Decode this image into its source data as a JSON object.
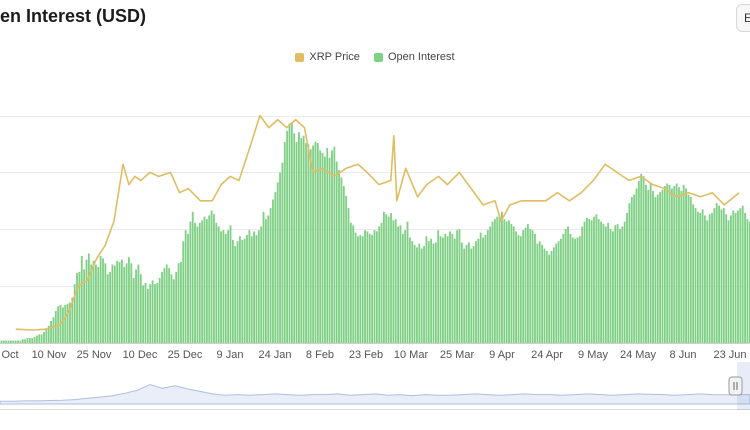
{
  "header": {
    "title": "en Interest (USD)",
    "export_label": "E"
  },
  "colors": {
    "price": "#e0bd63",
    "open_interest": "#7fcf85",
    "navigator": "#aebfe0",
    "grid": "#ebebeb"
  },
  "chart_data": {
    "type": "bar",
    "title": "en Interest (USD)",
    "legend_placement": "top-center",
    "grid": true,
    "x_tick_labels": [
      "Oct",
      "10 Nov",
      "25 Nov",
      "10 Dec",
      "25 Dec",
      "9 Jan",
      "24 Jan",
      "8 Feb",
      "23 Feb",
      "10 Mar",
      "25 Mar",
      "9 Apr",
      "24 Apr",
      "9 May",
      "24 May",
      "8 Jun",
      "23 Jun"
    ],
    "series": [
      {
        "name": "XRP Price",
        "type": "line",
        "x": [
          "2024-10-26",
          "2024-11-01",
          "2024-11-05",
          "2024-11-10",
          "2024-11-13",
          "2024-11-16",
          "2024-11-19",
          "2024-11-22",
          "2024-11-25",
          "2024-11-28",
          "2024-12-01",
          "2024-12-03",
          "2024-12-05",
          "2024-12-07",
          "2024-12-10",
          "2024-12-13",
          "2024-12-17",
          "2024-12-20",
          "2024-12-23",
          "2024-12-27",
          "2024-12-31",
          "2025-01-03",
          "2025-01-06",
          "2025-01-09",
          "2025-01-13",
          "2025-01-16",
          "2025-01-19",
          "2025-01-22",
          "2025-01-25",
          "2025-01-28",
          "2025-01-31",
          "2025-02-02",
          "2025-02-03",
          "2025-02-06",
          "2025-02-10",
          "2025-02-14",
          "2025-02-18",
          "2025-02-21",
          "2025-02-25",
          "2025-03-01",
          "2025-03-02",
          "2025-03-03",
          "2025-03-06",
          "2025-03-10",
          "2025-03-13",
          "2025-03-17",
          "2025-03-20",
          "2025-03-24",
          "2025-03-28",
          "2025-04-01",
          "2025-04-05",
          "2025-04-07",
          "2025-04-10",
          "2025-04-14",
          "2025-04-18",
          "2025-04-22",
          "2025-04-26",
          "2025-04-30",
          "2025-05-04",
          "2025-05-08",
          "2025-05-12",
          "2025-05-16",
          "2025-05-20",
          "2025-05-24",
          "2025-05-28",
          "2025-06-01",
          "2025-06-05",
          "2025-06-09",
          "2025-06-13",
          "2025-06-17",
          "2025-06-21",
          "2025-06-26"
        ],
        "values": [
          0.52,
          0.51,
          0.52,
          0.58,
          0.75,
          1.05,
          1.12,
          1.38,
          1.55,
          1.85,
          2.55,
          2.3,
          2.4,
          2.35,
          2.45,
          2.4,
          2.45,
          2.2,
          2.25,
          2.1,
          2.1,
          2.3,
          2.4,
          2.35,
          2.8,
          3.15,
          3.0,
          3.1,
          3.0,
          3.1,
          3.0,
          2.6,
          2.45,
          2.5,
          2.4,
          2.5,
          2.55,
          2.45,
          2.3,
          2.35,
          2.9,
          2.1,
          2.5,
          2.15,
          2.3,
          2.4,
          2.3,
          2.45,
          2.25,
          2.05,
          2.1,
          1.85,
          2.05,
          2.1,
          2.1,
          2.1,
          2.2,
          2.1,
          2.2,
          2.35,
          2.55,
          2.45,
          2.35,
          2.4,
          2.3,
          2.25,
          2.15,
          2.2,
          2.15,
          2.2,
          2.05,
          2.2
        ]
      },
      {
        "name": "Open Interest",
        "type": "bar",
        "values": [
          0.1,
          0.1,
          0.1,
          0.1,
          0.1,
          0.1,
          0.1,
          0.1,
          0.1,
          0.1,
          0.15,
          0.15,
          0.2,
          0.2,
          0.2,
          0.25,
          0.3,
          0.35,
          0.35,
          0.45,
          0.55,
          0.7,
          0.9,
          1.05,
          1.3,
          1.5,
          1.55,
          1.45,
          1.55,
          1.6,
          1.65,
          1.85,
          2.4,
          2.85,
          2.9,
          3.55,
          3.0,
          3.4,
          3.65,
          3.2,
          3.35,
          3.2,
          3.1,
          3.55,
          3.45,
          3.25,
          2.8,
          2.9,
          3.2,
          3.15,
          3.35,
          3.3,
          3.4,
          3.1,
          3.25,
          3.5,
          3.25,
          2.65,
          3.0,
          3.2,
          2.8,
          2.35,
          2.45,
          2.2,
          2.4,
          2.55,
          2.4,
          2.45,
          2.65,
          2.9,
          3.05,
          3.2,
          3.05,
          2.8,
          2.6,
          2.9,
          3.25,
          3.3,
          4.15,
          4.6,
          4.45,
          4.95,
          5.35,
          4.9,
          4.75,
          4.9,
          5.0,
          5.15,
          5.05,
          5.2,
          5.4,
          5.25,
          4.9,
          4.75,
          4.55,
          4.6,
          4.45,
          4.6,
          4.8,
          4.2,
          3.95,
          4.15,
          4.35,
          4.2,
          4.25,
          4.4,
          4.6,
          4.35,
          4.55,
          4.4,
          4.6,
          4.75,
          5.35,
          5.05,
          5.2,
          5.5,
          5.85,
          6.15,
          6.55,
          6.95,
          7.35,
          8.2,
          8.65,
          8.95,
          9.0,
          8.55,
          8.2,
          8.6,
          8.35,
          8.45,
          8.15,
          8.1,
          7.9,
          8.05,
          8.2,
          8.15,
          7.85,
          7.75,
          7.6,
          7.95,
          7.55,
          7.85,
          8.0,
          7.4,
          7.05,
          6.75,
          6.4,
          6.0,
          5.5,
          4.9,
          4.8,
          4.5,
          4.35,
          4.4,
          4.35,
          4.6,
          4.55,
          4.45,
          4.4,
          4.6,
          4.55,
          4.75,
          4.9,
          5.35,
          5.25,
          5.15,
          5.3,
          5.0,
          5.05,
          4.75,
          4.8,
          4.45,
          4.6,
          4.95,
          4.3,
          4.15,
          4.0,
          3.9,
          4.05,
          3.85,
          3.95,
          4.35,
          4.15,
          4.25,
          4.05,
          4.1,
          4.6,
          4.35,
          4.3,
          4.45,
          4.35,
          4.55,
          4.45,
          4.25,
          4.6,
          4.65,
          4.1,
          3.85,
          4.0,
          4.1,
          3.85,
          3.95,
          4.15,
          4.25,
          4.5,
          4.3,
          4.4,
          4.6,
          4.75,
          4.95,
          5.05,
          5.15,
          5.2,
          5.35,
          5.05,
          4.95,
          5.0,
          4.85,
          4.75,
          4.55,
          4.4,
          4.35,
          4.6,
          4.7,
          4.85,
          4.65,
          4.6,
          4.45,
          4.05,
          4.15,
          4.0,
          3.85,
          3.75,
          3.6,
          3.75,
          3.9,
          4.05,
          4.15,
          4.25,
          4.45,
          4.65,
          4.75,
          4.45,
          4.3,
          4.25,
          4.3,
          4.35,
          4.75,
          4.95,
          5.1,
          5.05,
          5.0,
          5.15,
          5.25,
          5.05,
          4.95,
          4.85,
          4.75,
          4.9,
          4.65,
          4.55,
          4.8,
          4.85,
          4.65,
          4.75,
          4.95,
          5.3,
          5.7,
          5.95,
          6.05,
          6.3,
          6.6,
          6.9,
          6.8,
          6.45,
          6.25,
          6.5,
          6.2,
          5.95,
          6.05,
          6.15,
          6.25,
          6.4,
          6.5,
          6.45,
          6.3,
          6.4,
          6.5,
          6.35,
          6.2,
          6.45,
          6.3,
          6.05,
          5.95,
          5.65,
          5.5,
          5.35,
          5.3,
          5.45,
          5.2,
          5.0,
          5.25,
          5.3,
          5.5,
          5.7,
          5.6,
          5.45,
          5.5,
          5.25,
          5.0,
          5.2,
          5.4,
          5.3,
          5.4,
          5.5,
          5.6,
          5.3,
          5.05,
          4.95
        ]
      }
    ],
    "navigator": {
      "values": [
        0.45,
        0.45,
        0.5,
        0.5,
        0.55,
        0.6,
        0.7,
        0.9,
        1.1,
        1.3,
        1.7,
        2.2,
        3.1,
        2.5,
        2.9,
        2.4,
        2.0,
        1.6,
        1.4,
        1.5,
        1.4,
        1.5,
        1.6,
        1.5,
        1.4,
        1.5,
        1.5,
        1.6,
        1.4,
        1.5,
        1.6,
        1.4,
        1.5,
        1.3,
        1.5,
        1.4,
        1.4,
        1.5,
        1.6,
        1.5,
        1.4,
        1.5,
        1.6,
        1.5,
        1.5,
        1.4,
        1.5,
        1.6,
        1.5,
        1.4,
        1.5,
        1.6,
        1.55,
        1.5,
        1.4,
        1.5,
        1.6,
        1.5,
        1.45,
        1.5,
        1.5
      ]
    }
  }
}
